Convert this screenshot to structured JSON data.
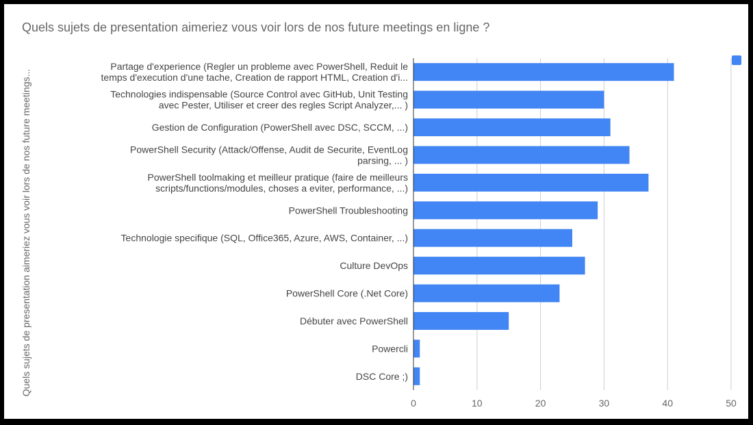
{
  "chart_data": {
    "type": "bar",
    "orientation": "horizontal",
    "title": "Quels sujets de presentation aimeriez vous voir lors de nos future meetings en ligne ?",
    "xlabel": "",
    "ylabel": "Quels sujets de presentation aimeriez vous voir lors de nos future meetings...",
    "xlim": [
      0,
      50
    ],
    "xticks": [
      0,
      10,
      20,
      30,
      40,
      50
    ],
    "grid": true,
    "legend": "top-right",
    "bar_color": "#4285f4",
    "categories": [
      [
        "Partage d'experience (Regler un probleme avec PowerShell, Reduit le",
        "temps d'execution d'une tache, Creation de rapport HTML, Creation d'i..."
      ],
      [
        "Technologies indispensable (Source Control avec GitHub, Unit Testing",
        "avec Pester, Utiliser et creer des regles Script Analyzer,... )"
      ],
      [
        "Gestion de Configuration (PowerShell avec DSC, SCCM, ...)"
      ],
      [
        "PowerShell Security (Attack/Offense, Audit de Securite, EventLog",
        "parsing, ... )"
      ],
      [
        "PowerShell toolmaking et meilleur pratique (faire de meilleurs",
        "scripts/functions/modules, choses a eviter, performance, ...)"
      ],
      [
        "PowerShell Troubleshooting"
      ],
      [
        "Technologie specifique (SQL, Office365, Azure, AWS, Container, ...)"
      ],
      [
        "Culture DevOps"
      ],
      [
        "PowerShell Core (.Net Core)"
      ],
      [
        "Débuter avec PowerShell"
      ],
      [
        "Powercli"
      ],
      [
        "DSC Core ;)"
      ]
    ],
    "values": [
      41,
      30,
      31,
      34,
      37,
      29,
      25,
      27,
      23,
      15,
      1,
      1
    ]
  }
}
